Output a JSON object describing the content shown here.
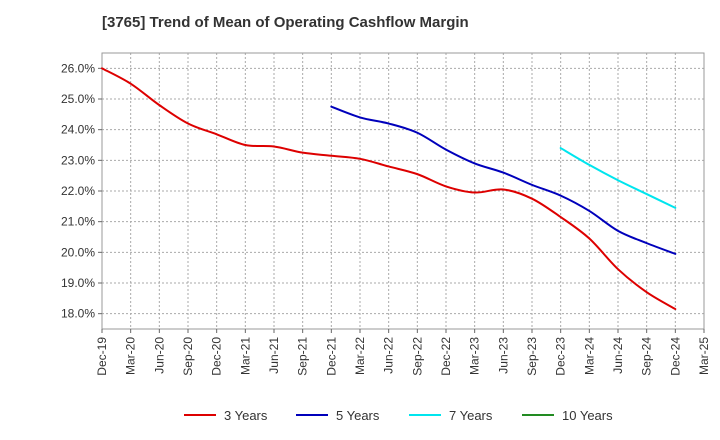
{
  "chart_data": {
    "type": "line",
    "title": "[3765]  Trend of Mean of Operating Cashflow Margin",
    "xlabel": "",
    "ylabel": "",
    "ylim": [
      17.5,
      26.5
    ],
    "yticks": [
      18.0,
      19.0,
      20.0,
      21.0,
      22.0,
      23.0,
      24.0,
      25.0,
      26.0
    ],
    "ytick_labels": [
      "18.0%",
      "19.0%",
      "20.0%",
      "21.0%",
      "22.0%",
      "23.0%",
      "24.0%",
      "25.0%",
      "26.0%"
    ],
    "categories": [
      "Dec-19",
      "Mar-20",
      "Jun-20",
      "Sep-20",
      "Dec-20",
      "Mar-21",
      "Jun-21",
      "Sep-21",
      "Dec-21",
      "Mar-22",
      "Jun-22",
      "Sep-22",
      "Dec-22",
      "Mar-23",
      "Jun-23",
      "Sep-23",
      "Dec-23",
      "Mar-24",
      "Jun-24",
      "Sep-24",
      "Dec-24",
      "Mar-25"
    ],
    "grid": true,
    "legend_position": "bottom",
    "series": [
      {
        "name": "3 Years",
        "color": "#dd0000",
        "values": [
          26.0,
          25.5,
          24.8,
          24.2,
          23.85,
          23.5,
          23.45,
          23.25,
          23.15,
          23.05,
          22.8,
          22.55,
          22.15,
          21.95,
          22.05,
          21.75,
          21.15,
          20.45,
          19.45,
          18.7,
          18.15,
          null
        ]
      },
      {
        "name": "5 Years",
        "color": "#0000bb",
        "values": [
          null,
          null,
          null,
          null,
          null,
          null,
          null,
          null,
          24.75,
          24.4,
          24.2,
          23.9,
          23.35,
          22.9,
          22.6,
          22.2,
          21.85,
          21.35,
          20.7,
          20.3,
          19.95,
          null
        ]
      },
      {
        "name": "7 Years",
        "color": "#00e5ee",
        "values": [
          null,
          null,
          null,
          null,
          null,
          null,
          null,
          null,
          null,
          null,
          null,
          null,
          null,
          null,
          null,
          null,
          23.4,
          22.85,
          22.35,
          21.9,
          21.45,
          null
        ]
      },
      {
        "name": "10 Years",
        "color": "#228b22",
        "values": [
          null,
          null,
          null,
          null,
          null,
          null,
          null,
          null,
          null,
          null,
          null,
          null,
          null,
          null,
          null,
          null,
          null,
          null,
          null,
          null,
          null,
          null
        ]
      }
    ]
  }
}
